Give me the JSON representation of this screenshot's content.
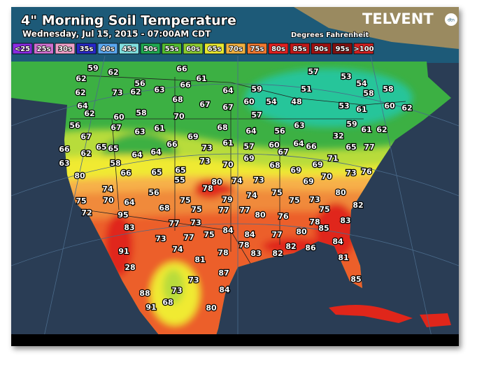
{
  "header": {
    "title": "4\" Morning Soil Temperature",
    "subtitle": "Wednesday, Jul 15, 2015 - 07:00AM CDT",
    "units": "Degrees Fahrenheit",
    "logo": "TELVENT",
    "logo_badge": "dtn"
  },
  "legend": [
    {
      "label": "<25",
      "color": "#8a2be2"
    },
    {
      "label": "25s",
      "color": "#d070d0"
    },
    {
      "label": "30s",
      "color": "#f0a0c8"
    },
    {
      "label": "35s",
      "color": "#2828c8"
    },
    {
      "label": "40s",
      "color": "#5aa8f0"
    },
    {
      "label": "45s",
      "color": "#80e0e0"
    },
    {
      "label": "50s",
      "color": "#1faa50"
    },
    {
      "label": "55s",
      "color": "#52bb30"
    },
    {
      "label": "60s",
      "color": "#8ccc30"
    },
    {
      "label": "65s",
      "color": "#e8e830"
    },
    {
      "label": "70s",
      "color": "#f0b040"
    },
    {
      "label": "75s",
      "color": "#f07830"
    },
    {
      "label": "80s",
      "color": "#e02020"
    },
    {
      "label": "85s",
      "color": "#c01818"
    },
    {
      "label": "90s",
      "color": "#a01010"
    },
    {
      "label": "95s",
      "color": "#801010"
    },
    {
      "label": ">100",
      "color": "#d02020"
    }
  ],
  "map": {
    "readings": [
      59,
      62,
      66,
      61,
      56,
      63,
      66,
      64,
      59,
      57,
      53,
      54,
      51,
      58,
      58,
      62,
      62,
      73,
      62,
      64,
      62,
      60,
      58,
      68,
      67,
      67,
      60,
      54,
      48,
      53,
      61,
      60,
      62,
      57,
      63,
      56,
      59,
      61,
      56,
      67,
      63,
      61,
      70,
      68,
      64,
      32,
      62,
      67,
      69,
      65,
      65,
      64,
      64,
      66,
      73,
      61,
      57,
      60,
      64,
      66,
      65,
      77,
      66,
      62,
      58,
      73,
      70,
      69,
      67,
      68,
      69,
      69,
      70,
      71,
      73,
      76,
      63,
      80,
      66,
      65,
      65,
      55,
      78,
      80,
      74,
      73,
      75,
      74,
      69,
      80,
      74,
      75,
      70,
      64,
      56,
      75,
      75,
      79,
      77,
      77,
      80,
      75,
      73,
      75,
      82,
      72,
      95,
      68,
      76,
      78,
      83,
      83,
      77,
      73,
      75,
      84,
      84,
      77,
      80,
      85,
      73,
      77,
      78,
      83,
      82,
      82,
      86,
      84,
      91,
      74,
      78,
      81,
      81,
      28,
      87,
      73,
      85,
      73,
      84,
      88,
      68,
      91,
      80
    ]
  }
}
